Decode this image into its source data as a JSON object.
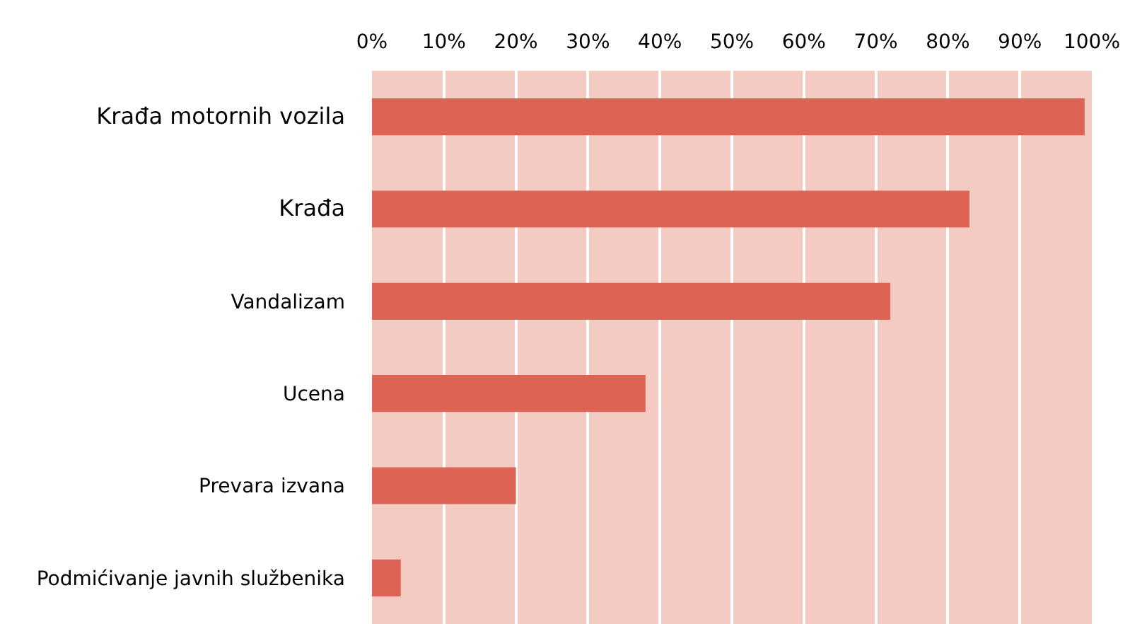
{
  "chart_data": {
    "type": "bar",
    "orientation": "horizontal",
    "categories": [
      "Krađa motornih vozila",
      "Krađa",
      "Vandalizam",
      "Ucena",
      "Prevara izvana",
      "Podmićivanje javnih službenika"
    ],
    "values": [
      99,
      83,
      72,
      38,
      20,
      4
    ],
    "color": "#dd6455",
    "xlim": [
      0,
      100
    ],
    "xticks": [
      {
        "value": 0,
        "label": "0%"
      },
      {
        "value": 10,
        "label": "10%"
      },
      {
        "value": 20,
        "label": "20%"
      },
      {
        "value": 30,
        "label": "30%"
      },
      {
        "value": 40,
        "label": "40%"
      },
      {
        "value": 50,
        "label": "50%"
      },
      {
        "value": 60,
        "label": "60%"
      },
      {
        "value": 70,
        "label": "70%"
      },
      {
        "value": 80,
        "label": "80%"
      },
      {
        "value": 90,
        "label": "90%"
      },
      {
        "value": 100,
        "label": "100%"
      }
    ],
    "grid": "x"
  }
}
